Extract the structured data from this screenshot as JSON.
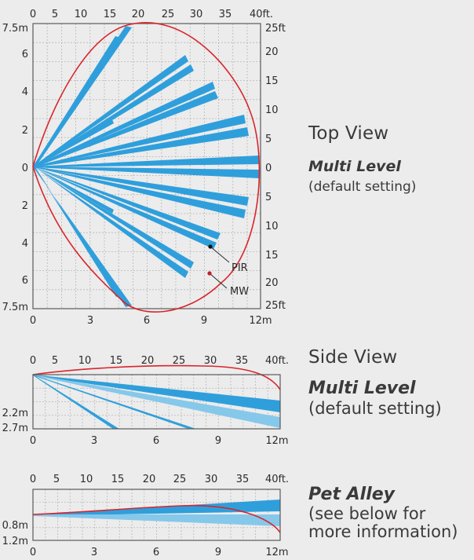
{
  "top_view": {
    "title": "Top View",
    "mode": "Multi Level",
    "setting": "(default setting)",
    "ft_top": [
      "0",
      "5",
      "10",
      "15",
      "20",
      "25",
      "30",
      "35",
      "40ft."
    ],
    "ft_right": [
      "25ft",
      "20",
      "15",
      "10",
      "5",
      "0",
      "5",
      "10",
      "15",
      "20",
      "25ft"
    ],
    "m_left": [
      "7.5m",
      "6",
      "4",
      "2",
      "0",
      "2",
      "4",
      "6",
      "7.5m"
    ],
    "m_bottom": [
      "0",
      "3",
      "6",
      "9",
      "12m"
    ],
    "pir_label": "PIR",
    "mw_label": "MW"
  },
  "side_view": {
    "title": "Side View",
    "mode": "Multi Level",
    "setting": "(default setting)",
    "ft_top": [
      "0",
      "5",
      "10",
      "15",
      "20",
      "25",
      "30",
      "35",
      "40ft."
    ],
    "m_left": [
      "2.2m",
      "2.7m"
    ],
    "m_bottom": [
      "0",
      "3",
      "6",
      "9",
      "12m"
    ]
  },
  "pet_view": {
    "mode": "Pet Alley",
    "line1": "(see below for",
    "line2": "more information)",
    "ft_top": [
      "0",
      "5",
      "10",
      "15",
      "20",
      "25",
      "30",
      "35",
      "40ft."
    ],
    "m_left": [
      "0.8m",
      "1.2m"
    ],
    "m_bottom": [
      "0",
      "3",
      "6",
      "9",
      "12m"
    ]
  },
  "colors": {
    "pir": "#2f9fdc",
    "pir_light": "#86c8ea",
    "mw": "#d9252b",
    "grid": "#b7b7b7",
    "frame": "#5a5a5a"
  }
}
